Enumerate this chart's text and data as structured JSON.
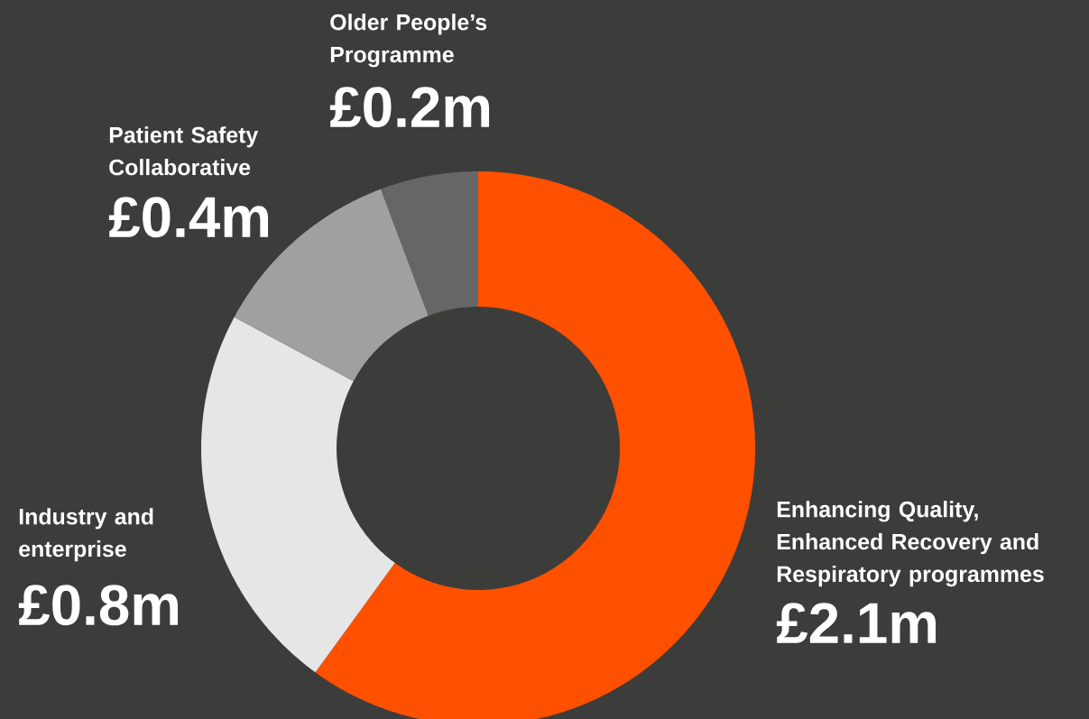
{
  "chart_data": {
    "type": "donut",
    "categories": [
      "Enhancing Quality, Enhanced Recovery and Respiratory programmes",
      "Industry and enterprise",
      "Patient Safety Collaborative",
      "Older People’s Programme"
    ],
    "values": [
      2.1,
      0.8,
      0.4,
      0.2
    ],
    "value_labels": [
      "£2.1m",
      "£0.8m",
      "£0.4m",
      "£0.2m"
    ],
    "colors": [
      "#ff5000",
      "#e6e6e6",
      "#a0a09e",
      "#666666"
    ]
  }
}
